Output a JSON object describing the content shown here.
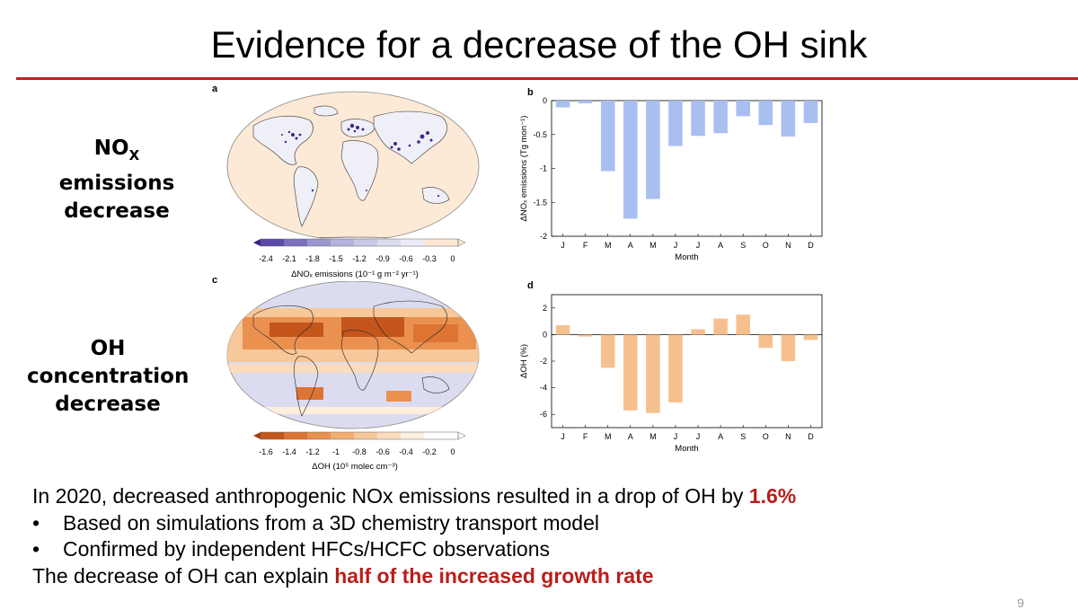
{
  "slide": {
    "title": "Evidence for a decrease of the OH sink",
    "page_number": "9"
  },
  "row_labels": {
    "nox_line1": "NO",
    "nox_sub": "X",
    "nox_line2": "emissions",
    "nox_line3": "decrease",
    "oh_line1": "OH",
    "oh_line2": "concentration",
    "oh_line3": "decrease"
  },
  "panels": {
    "a": {
      "letter": "a",
      "colorbar_ticks": [
        "-2.4",
        "-2.1",
        "-1.8",
        "-1.5",
        "-1.2",
        "-0.9",
        "-0.6",
        "-0.3",
        "0"
      ],
      "colorbar_label": "ΔNOₓ emissions (10⁻¹ g m⁻² yr⁻¹)",
      "colors": [
        "#3b1e8a",
        "#5b48a8",
        "#7a70bd",
        "#9a97cf",
        "#b3b3dc",
        "#c9c9e6",
        "#dcdcef",
        "#ececf6",
        "#fbe7d3"
      ]
    },
    "c": {
      "letter": "c",
      "colorbar_ticks": [
        "-1.6",
        "-1.4",
        "-1.2",
        "-1",
        "-0.8",
        "-0.6",
        "-0.4",
        "-0.2",
        "0"
      ],
      "colorbar_label": "ΔOH (10⁵ molec cm⁻³)",
      "colors": [
        "#a3400e",
        "#c4561c",
        "#dd7432",
        "#ea9150",
        "#f2ae72",
        "#f7c899",
        "#fadcbc",
        "#fdeede",
        "#ffffff"
      ]
    },
    "b": {
      "letter": "b"
    },
    "d": {
      "letter": "d"
    }
  },
  "chart_data": [
    {
      "type": "bar",
      "panel": "b",
      "categories": [
        "J",
        "F",
        "M",
        "A",
        "M",
        "J",
        "J",
        "A",
        "S",
        "O",
        "N",
        "D"
      ],
      "values": [
        -0.1,
        -0.04,
        -1.04,
        -1.74,
        -1.45,
        -0.67,
        -0.52,
        -0.48,
        -0.23,
        -0.36,
        -0.53,
        -0.33
      ],
      "xlabel": "Month",
      "ylabel": "ΔNOₓ emissions (Tg mon⁻¹)",
      "ylim": [
        -2,
        0
      ],
      "yticks": [
        "0",
        "-0.5",
        "-1",
        "-1.5",
        "-2"
      ],
      "color": "#a8bff0"
    },
    {
      "type": "bar",
      "panel": "d",
      "categories": [
        "J",
        "F",
        "M",
        "A",
        "M",
        "J",
        "J",
        "A",
        "S",
        "O",
        "N",
        "D"
      ],
      "values": [
        0.7,
        -0.15,
        -2.5,
        -5.7,
        -5.9,
        -5.1,
        0.4,
        1.2,
        1.5,
        -1.0,
        -2.0,
        -0.4
      ],
      "xlabel": "Month",
      "ylabel": "ΔOH (%)",
      "ylim": [
        -7,
        3
      ],
      "yticks": [
        "2",
        "0",
        "-2",
        "-4",
        "-6"
      ],
      "color": "#f6c08e"
    }
  ],
  "text": {
    "line1_pre": "In 2020, decreased anthropogenic NOx emissions resulted in a drop of OH by ",
    "line1_hl": "1.6%",
    "bullet1": "Based on simulations from a 3D chemistry transport model",
    "bullet2": "Confirmed by independent HFCs/HCFC observations",
    "line4_pre": "The decrease of OH can explain ",
    "line4_hl": "half of the increased growth rate",
    "bullet_char": "•"
  }
}
